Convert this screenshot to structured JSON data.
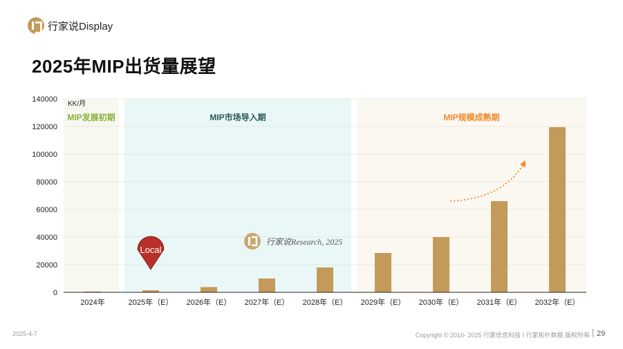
{
  "brand": {
    "name": "行家说Display"
  },
  "page_title": "2025年MIP出货量展望",
  "footer": {
    "date": "2025-4-7",
    "copyright": "Copyright © 2016- 2025 行家信息科技 I 行家拓扑数据 版权所有",
    "page": "29"
  },
  "colors": {
    "bar": "#c49a5a",
    "phase1_bg": "#f7f8f0",
    "phase2_bg": "#e9f7f6",
    "phase3_bg": "#fbf7f1",
    "phase1_label": "#8bb23a",
    "phase2_label": "#2a5a58",
    "phase3_label": "#f08a2a",
    "pin": "#b8302a",
    "arrow": "#f08a2a"
  },
  "chart_data": {
    "type": "bar",
    "unit_label": "KK/月",
    "categories": [
      "2024年",
      "2025年（E）",
      "2026年（E）",
      "2027年（E）",
      "2028年（E）",
      "2029年（E）",
      "2030年（E）",
      "2031年（E）",
      "2032年（E）"
    ],
    "values": [
      600,
      1500,
      3800,
      10000,
      18000,
      28500,
      40000,
      66000,
      119500
    ],
    "ylim": [
      0,
      140000
    ],
    "yticks": [
      0,
      20000,
      40000,
      60000,
      80000,
      100000,
      120000,
      140000
    ],
    "grid": true,
    "phases": [
      {
        "label": "MIP发展初期",
        "from_index": 0,
        "to_index": 0
      },
      {
        "label": "MIP市场导入期",
        "from_index": 1,
        "to_index": 4
      },
      {
        "label": "MIP规模成熟期",
        "from_index": 5,
        "to_index": 8
      }
    ],
    "annotations": {
      "pin_label": "Local",
      "pin_category_index": 1,
      "watermark": "行家说Research, 2025",
      "trend_arrow": true
    }
  }
}
